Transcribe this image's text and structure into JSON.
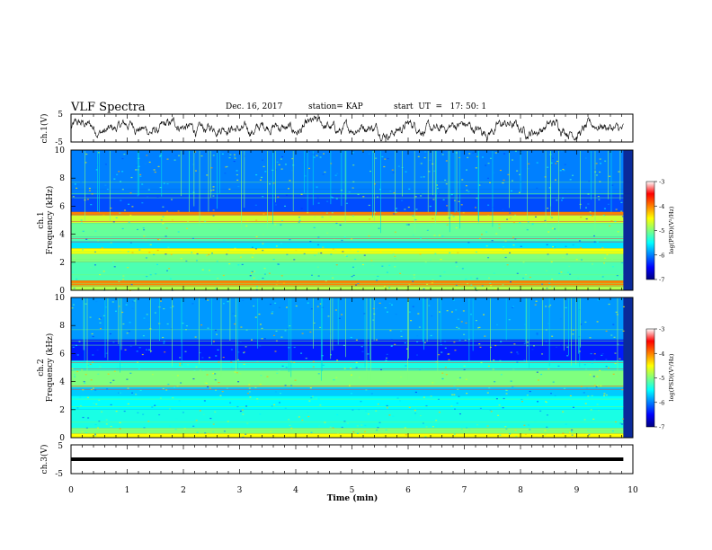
{
  "header": {
    "title": "VLF Spectra",
    "date": "Dec. 16, 2017",
    "station": "station= KAP",
    "start": "start  UT  =   17: 50: 1"
  },
  "chart_data": [
    {
      "type": "line",
      "name": "waveform_ch1",
      "ylabel": "ch.1(V)",
      "ylim": [
        -5,
        5
      ],
      "yticks": [
        "5",
        "-5"
      ],
      "xlim": [
        0,
        10
      ],
      "x_end": 9.83,
      "description": "noisy waveform oscillating around 0 V, amplitude about ±4 V",
      "grid": false
    },
    {
      "type": "heatmap",
      "name": "spectrogram_ch1",
      "ylabel": "ch.1\nFrequency  (kHz)",
      "ylim": [
        0,
        10
      ],
      "yticks": [
        "0",
        "2",
        "4",
        "6",
        "8",
        "10"
      ],
      "xlim": [
        0,
        10
      ],
      "x_end": 9.83,
      "colorbar": {
        "label": "log(PSD)(V²/Hz)",
        "range": [
          -7,
          -3
        ],
        "ticks": [
          "-3",
          "-4",
          "-5",
          "-6",
          "-7"
        ]
      },
      "bands_kHz": [
        {
          "from": 0.0,
          "to": 0.3,
          "level": -4.8
        },
        {
          "from": 0.3,
          "to": 0.7,
          "level": -4.0
        },
        {
          "from": 0.7,
          "to": 2.0,
          "level": -5.2
        },
        {
          "from": 2.0,
          "to": 2.6,
          "level": -5.0
        },
        {
          "from": 2.6,
          "to": 3.0,
          "level": -4.5
        },
        {
          "from": 3.0,
          "to": 3.5,
          "level": -5.6
        },
        {
          "from": 3.5,
          "to": 3.8,
          "level": -5.2
        },
        {
          "from": 3.8,
          "to": 4.8,
          "level": -5.1
        },
        {
          "from": 4.8,
          "to": 5.4,
          "level": -4.7
        },
        {
          "from": 5.4,
          "to": 5.6,
          "level": -4.0
        },
        {
          "from": 5.6,
          "to": 6.8,
          "level": -6.2
        },
        {
          "from": 6.8,
          "to": 7.2,
          "level": -6.0
        },
        {
          "from": 7.2,
          "to": 10.0,
          "level": -6.0
        }
      ]
    },
    {
      "type": "heatmap",
      "name": "spectrogram_ch2",
      "ylabel": "ch.2\nFrequency  (kHz)",
      "ylim": [
        0,
        10
      ],
      "yticks": [
        "0",
        "2",
        "4",
        "6",
        "8",
        "10"
      ],
      "xlim": [
        0,
        10
      ],
      "x_end": 9.83,
      "colorbar": {
        "label": "log(PSD)(V²/Hz)",
        "range": [
          -7,
          -3
        ],
        "ticks": [
          "-3",
          "-4",
          "-5",
          "-6",
          "-7"
        ]
      },
      "bands_kHz": [
        {
          "from": 0.0,
          "to": 0.3,
          "level": -4.5
        },
        {
          "from": 0.3,
          "to": 0.7,
          "level": -5.0
        },
        {
          "from": 0.7,
          "to": 2.0,
          "level": -5.4
        },
        {
          "from": 2.0,
          "to": 3.0,
          "level": -5.5
        },
        {
          "from": 3.0,
          "to": 3.6,
          "level": -5.7
        },
        {
          "from": 3.6,
          "to": 4.8,
          "level": -5.0
        },
        {
          "from": 4.8,
          "to": 5.5,
          "level": -5.4
        },
        {
          "from": 5.5,
          "to": 7.0,
          "level": -6.4
        },
        {
          "from": 7.0,
          "to": 10.0,
          "level": -5.9
        }
      ]
    },
    {
      "type": "line",
      "name": "waveform_ch3",
      "ylabel": "ch.3(V)",
      "ylim": [
        -5,
        5
      ],
      "yticks": [
        "5",
        "-5"
      ],
      "xlim": [
        0,
        10
      ],
      "x_end": 9.83,
      "value": 0,
      "description": "flat thick line at 0 V",
      "xlabel": "Time  (min)",
      "xticks": [
        "0",
        "1",
        "2",
        "3",
        "4",
        "5",
        "6",
        "7",
        "8",
        "9",
        "10"
      ]
    }
  ]
}
